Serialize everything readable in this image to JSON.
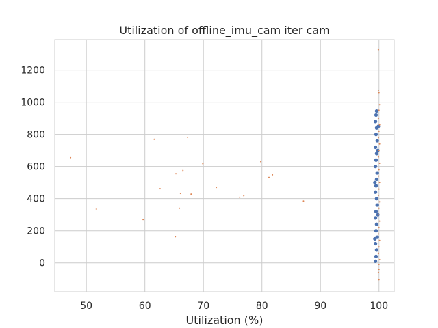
{
  "chart_data": {
    "type": "scatter",
    "title": "Utilization of offline_imu_cam iter cam",
    "xlabel": "Utilization (%)",
    "ylabel": "",
    "xlim": [
      44.6,
      102.6
    ],
    "ylim": [
      -180,
      1390
    ],
    "xticks": [
      50,
      60,
      70,
      80,
      90,
      100
    ],
    "yticks": [
      0,
      200,
      400,
      600,
      800,
      1000,
      1200
    ],
    "grid": true,
    "legend": "none",
    "colors": {
      "series_blue": "#4c72b0",
      "series_orange": "#dd8452",
      "grid": "#cccccc",
      "frame": "#cccccc",
      "text": "#262626",
      "background": "#ffffff"
    },
    "series": [
      {
        "color": "#4c72b0",
        "points": [
          [
            99.4,
            10
          ],
          [
            99.5,
            40
          ],
          [
            99.6,
            80
          ],
          [
            99.4,
            120
          ],
          [
            99.7,
            160
          ],
          [
            99.5,
            200
          ],
          [
            99.6,
            240
          ],
          [
            99.4,
            280
          ],
          [
            99.5,
            320
          ],
          [
            99.7,
            360
          ],
          [
            99.6,
            400
          ],
          [
            99.4,
            440
          ],
          [
            99.5,
            480
          ],
          [
            99.6,
            520
          ],
          [
            99.7,
            560
          ],
          [
            99.4,
            600
          ],
          [
            99.5,
            640
          ],
          [
            99.6,
            680
          ],
          [
            99.4,
            720
          ],
          [
            99.7,
            760
          ],
          [
            99.5,
            800
          ],
          [
            99.6,
            840
          ],
          [
            99.4,
            880
          ],
          [
            99.5,
            920
          ],
          [
            99.6,
            945
          ],
          [
            99.8,
            300
          ],
          [
            99.3,
            500
          ],
          [
            99.8,
            700
          ],
          [
            99.3,
            150
          ],
          [
            99.9,
            850
          ]
        ]
      },
      {
        "color": "#dd8452",
        "points": [
          [
            47.3,
            655
          ],
          [
            51.7,
            335
          ],
          [
            59.7,
            270
          ],
          [
            61.6,
            770
          ],
          [
            62.6,
            462
          ],
          [
            65.2,
            163
          ],
          [
            65.3,
            555
          ],
          [
            65.9,
            340
          ],
          [
            66.1,
            432
          ],
          [
            66.5,
            575
          ],
          [
            67.3,
            782
          ],
          [
            67.9,
            428
          ],
          [
            69.9,
            617
          ],
          [
            72.2,
            470
          ],
          [
            76.2,
            408
          ],
          [
            76.9,
            418
          ],
          [
            79.8,
            630
          ],
          [
            81.2,
            532
          ],
          [
            81.8,
            548
          ],
          [
            87.1,
            385
          ],
          [
            99.9,
            1328
          ],
          [
            99.9,
            1075
          ],
          [
            100.0,
            1060
          ],
          [
            100.1,
            985
          ],
          [
            100.0,
            950
          ],
          [
            99.9,
            900
          ],
          [
            100.1,
            860
          ],
          [
            100.0,
            820
          ],
          [
            99.9,
            780
          ],
          [
            100.1,
            740
          ],
          [
            100.0,
            700
          ],
          [
            99.9,
            660
          ],
          [
            100.1,
            620
          ],
          [
            100.0,
            580
          ],
          [
            99.9,
            540
          ],
          [
            100.1,
            500
          ],
          [
            100.0,
            460
          ],
          [
            99.9,
            420
          ],
          [
            100.1,
            380
          ],
          [
            100.0,
            340
          ],
          [
            99.9,
            300
          ],
          [
            100.1,
            260
          ],
          [
            100.0,
            220
          ],
          [
            99.9,
            180
          ],
          [
            100.1,
            140
          ],
          [
            100.0,
            100
          ],
          [
            99.9,
            60
          ],
          [
            100.1,
            20
          ],
          [
            100.0,
            -10
          ],
          [
            100.0,
            -40
          ],
          [
            99.9,
            -60
          ],
          [
            100.0,
            -105
          ]
        ]
      }
    ]
  }
}
